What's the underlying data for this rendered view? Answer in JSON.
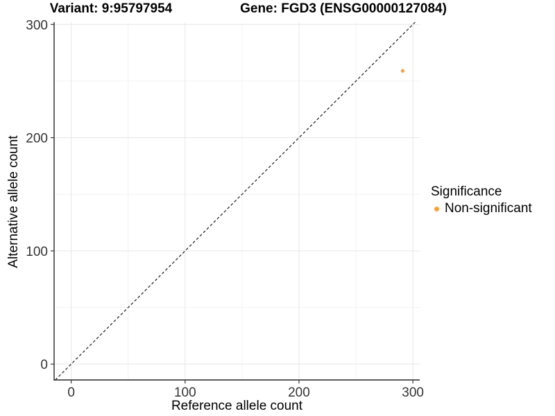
{
  "titles": {
    "left": "Variant: 9:95797954",
    "right": "Gene: FGD3 (ENSG00000127084)"
  },
  "legend": {
    "title": "Significance",
    "items": [
      {
        "label": "Non-significant",
        "color": "#F9A03C"
      }
    ]
  },
  "chart_data": {
    "type": "scatter",
    "title": "Variant: 9:95797954 — Gene: FGD3 (ENSG00000127084)",
    "xlabel": "Reference allele count",
    "ylabel": "Alternative allele count",
    "xlim": [
      -15,
      306
    ],
    "ylim": [
      -14,
      302
    ],
    "x_ticks": [
      0,
      100,
      200,
      300
    ],
    "y_ticks": [
      0,
      100,
      200,
      300
    ],
    "x_minor_ticks": [
      50,
      150,
      250
    ],
    "y_minor_ticks": [
      50,
      150,
      250
    ],
    "grid": "major+minor",
    "legend_position": "right",
    "legend_title": "Significance",
    "series": [
      {
        "name": "Non-significant",
        "color": "#F9A03C",
        "points": [
          [
            291,
            259
          ]
        ]
      }
    ],
    "reference_line": {
      "slope": 1,
      "intercept": 0,
      "linetype": "dashed",
      "color": "#1A1A1A"
    }
  },
  "colors": {
    "background": "#FFFFFF",
    "grid_major": "#E6E6E6",
    "grid_minor": "#F2F2F2",
    "axis_line": "#262626",
    "tick_mark": "#333333",
    "tick_label": "#333333",
    "title": "#000000",
    "point": "#F9A03C"
  }
}
